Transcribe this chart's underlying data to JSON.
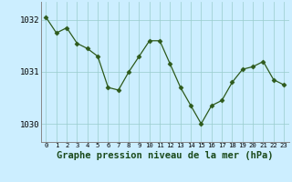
{
  "x": [
    0,
    1,
    2,
    3,
    4,
    5,
    6,
    7,
    8,
    9,
    10,
    11,
    12,
    13,
    14,
    15,
    16,
    17,
    18,
    19,
    20,
    21,
    22,
    23
  ],
  "y": [
    1032.05,
    1031.75,
    1031.85,
    1031.55,
    1031.45,
    1031.3,
    1030.7,
    1030.65,
    1031.0,
    1031.3,
    1031.6,
    1031.6,
    1031.15,
    1030.7,
    1030.35,
    1030.0,
    1030.35,
    1030.45,
    1030.8,
    1031.05,
    1031.1,
    1031.2,
    1030.85,
    1030.75
  ],
  "line_color": "#2d5a1b",
  "marker": "D",
  "marker_size": 2.5,
  "bg_color": "#cceeff",
  "grid_color": "#99cccc",
  "xlabel": "Graphe pression niveau de la mer (hPa)",
  "xlabel_fontsize": 7.5,
  "ytick_fontsize": 6.5,
  "xtick_fontsize": 5.2,
  "yticks": [
    1030,
    1031,
    1032
  ],
  "ylim": [
    1029.65,
    1032.35
  ],
  "xlim": [
    -0.5,
    23.5
  ],
  "xtick_labels": [
    "0",
    "1",
    "2",
    "3",
    "4",
    "5",
    "6",
    "7",
    "8",
    "9",
    "10",
    "11",
    "12",
    "13",
    "14",
    "15",
    "16",
    "17",
    "18",
    "19",
    "20",
    "21",
    "22",
    "23"
  ]
}
